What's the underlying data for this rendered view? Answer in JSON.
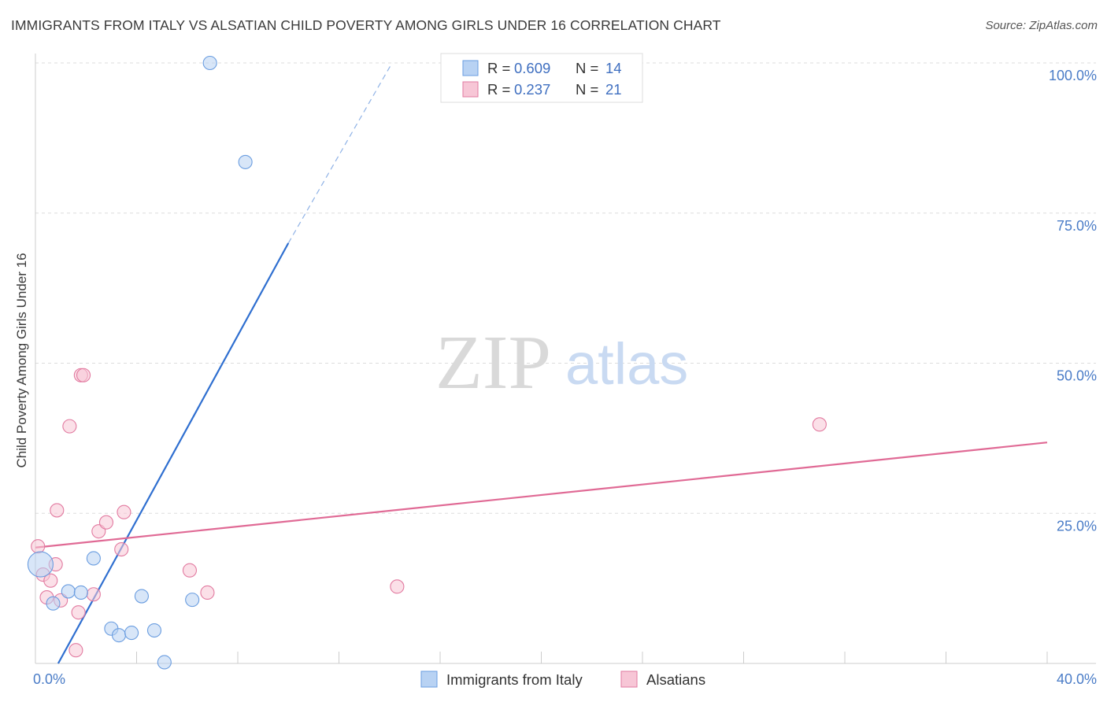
{
  "chart_data": {
    "type": "scatter",
    "title": "IMMIGRANTS FROM ITALY VS ALSATIAN CHILD POVERTY AMONG GIRLS UNDER 16 CORRELATION CHART",
    "source": "Source: ZipAtlas.com",
    "xlabel": "",
    "ylabel": "Child Poverty Among Girls Under 16",
    "xlim": [
      0,
      40
    ],
    "ylim": [
      0,
      100
    ],
    "x_tick_labels": [
      "0.0%",
      "40.0%"
    ],
    "y_ticks": [
      25,
      50,
      75,
      100
    ],
    "y_tick_labels": [
      "25.0%",
      "50.0%",
      "75.0%",
      "100.0%"
    ],
    "watermark": {
      "zip": "ZIP",
      "atlas": "atlas"
    },
    "series": [
      {
        "name": "Immigrants from Italy",
        "color": "#6a9de0",
        "fill": "#b8d2f3",
        "R": "0.609",
        "N": "14",
        "points": [
          {
            "x": 0.2,
            "y": 16.5,
            "big": true
          },
          {
            "x": 0.7,
            "y": 10.0
          },
          {
            "x": 1.3,
            "y": 12.0
          },
          {
            "x": 1.8,
            "y": 11.8
          },
          {
            "x": 2.3,
            "y": 17.5
          },
          {
            "x": 3.0,
            "y": 5.8
          },
          {
            "x": 3.3,
            "y": 4.7
          },
          {
            "x": 3.8,
            "y": 5.1
          },
          {
            "x": 4.2,
            "y": 11.2
          },
          {
            "x": 4.7,
            "y": 5.5
          },
          {
            "x": 5.1,
            "y": 0.2
          },
          {
            "x": 6.2,
            "y": 10.6
          },
          {
            "x": 6.9,
            "y": 100.0
          },
          {
            "x": 8.3,
            "y": 83.5
          }
        ],
        "trend": {
          "x1": 0.9,
          "y1": 0.0,
          "x2": 10.0,
          "y2": 70.0,
          "x3": 14.1,
          "y3": 100.0
        }
      },
      {
        "name": "Alsatians",
        "color": "#e27aa0",
        "fill": "#f7c6d6",
        "R": "0.237",
        "N": "21",
        "points": [
          {
            "x": 0.1,
            "y": 19.5
          },
          {
            "x": 0.3,
            "y": 14.8
          },
          {
            "x": 0.45,
            "y": 11.0
          },
          {
            "x": 0.6,
            "y": 13.8
          },
          {
            "x": 0.8,
            "y": 16.5
          },
          {
            "x": 0.85,
            "y": 25.5
          },
          {
            "x": 1.0,
            "y": 10.5
          },
          {
            "x": 1.35,
            "y": 39.5
          },
          {
            "x": 1.6,
            "y": 2.2
          },
          {
            "x": 1.7,
            "y": 8.5
          },
          {
            "x": 1.8,
            "y": 48.0
          },
          {
            "x": 1.9,
            "y": 48.0
          },
          {
            "x": 2.3,
            "y": 11.5
          },
          {
            "x": 2.5,
            "y": 22.0
          },
          {
            "x": 2.8,
            "y": 23.5
          },
          {
            "x": 3.4,
            "y": 19.0
          },
          {
            "x": 3.5,
            "y": 25.2
          },
          {
            "x": 6.1,
            "y": 15.5
          },
          {
            "x": 6.8,
            "y": 11.8
          },
          {
            "x": 14.3,
            "y": 12.8
          },
          {
            "x": 31.0,
            "y": 39.8
          }
        ],
        "trend": {
          "x1": 0.0,
          "y1": 19.3,
          "x2": 40.0,
          "y2": 36.8
        }
      }
    ],
    "legend": {
      "r_label": "R =",
      "n_label": "N ="
    }
  }
}
